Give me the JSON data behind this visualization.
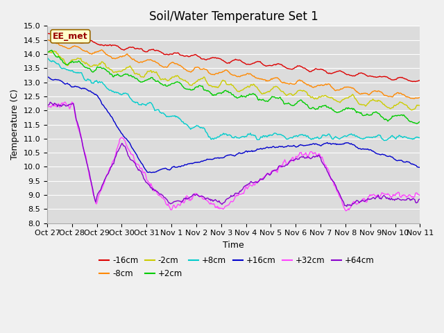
{
  "title": "Soil/Water Temperature Set 1",
  "xlabel": "Time",
  "ylabel": "Temperature (C)",
  "ylim": [
    8.0,
    15.0
  ],
  "yticks": [
    8.0,
    8.5,
    9.0,
    9.5,
    10.0,
    10.5,
    11.0,
    11.5,
    12.0,
    12.5,
    13.0,
    13.5,
    14.0,
    14.5,
    15.0
  ],
  "xtick_labels": [
    "Oct 27",
    "Oct 28",
    "Oct 29",
    "Oct 30",
    "Oct 31",
    "Nov 1",
    "Nov 2",
    "Nov 3",
    "Nov 4",
    "Nov 5",
    "Nov 6",
    "Nov 7",
    "Nov 8",
    "Nov 9",
    "Nov 10",
    "Nov 11"
  ],
  "figure_bg": "#f0f0f0",
  "plot_bg": "#dcdcdc",
  "grid_color": "#ffffff",
  "ee_met_label": "EE_met",
  "ee_met_bg": "#ffffcc",
  "ee_met_border": "#996600",
  "series": [
    {
      "label": "-16cm",
      "color": "#dd0000"
    },
    {
      "label": "-8cm",
      "color": "#ff8800"
    },
    {
      "label": "-2cm",
      "color": "#cccc00"
    },
    {
      "label": "+2cm",
      "color": "#00cc00"
    },
    {
      "label": "+8cm",
      "color": "#00cccc"
    },
    {
      "label": "+16cm",
      "color": "#0000cc"
    },
    {
      "label": "+32cm",
      "color": "#ff44ff"
    },
    {
      "label": "+64cm",
      "color": "#8800cc"
    }
  ],
  "n_points": 500,
  "title_fontsize": 12,
  "axis_fontsize": 9,
  "tick_fontsize": 8,
  "legend_fontsize": 8.5
}
